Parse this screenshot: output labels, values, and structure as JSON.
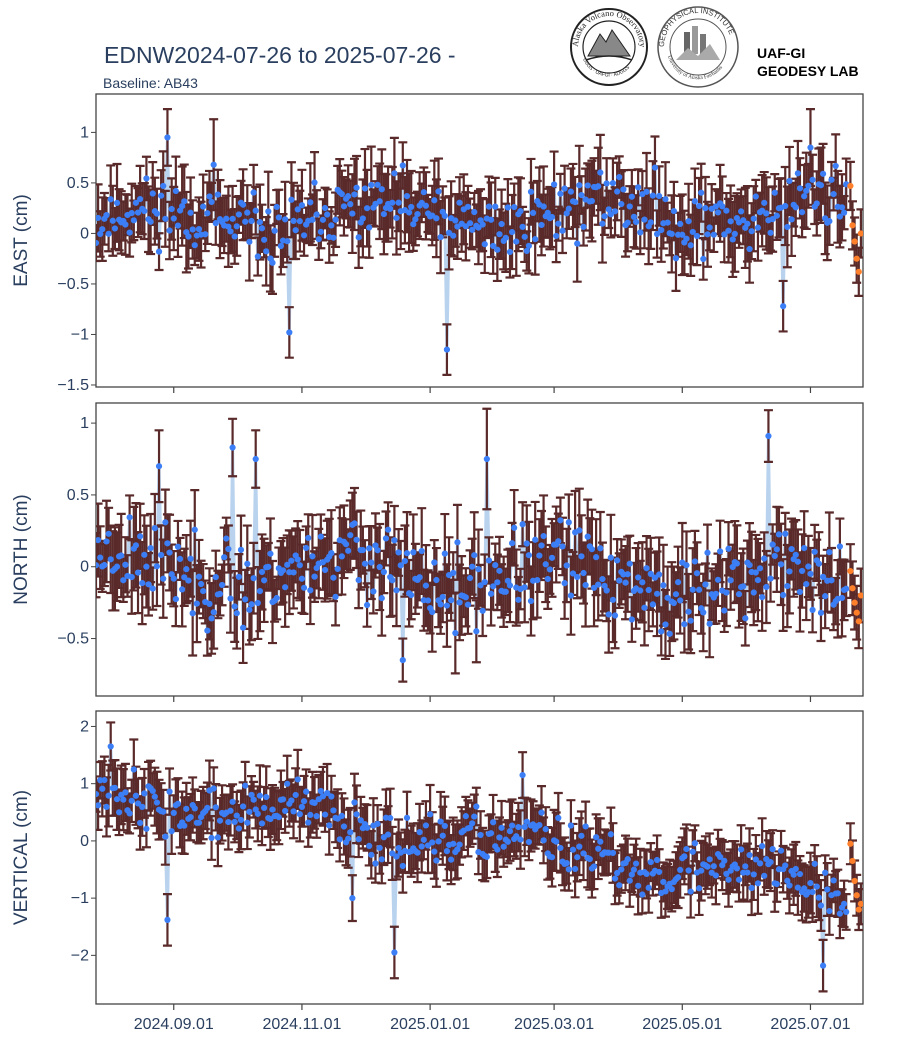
{
  "header": {
    "title": "EDNW2024-07-26 to 2025-07-26 -",
    "subtitle": "Baseline: AB43",
    "lab_line1": "UAF-GI",
    "lab_line2": "GEODESY LAB",
    "logo1_text": "Alaska Volcano Observatory",
    "logo1_subtext": "USGS · UAFGI · ADGGS",
    "logo2_text": "GEOPHYSICAL INSTITUTE",
    "logo2_subtext": "University of Alaska Fairbanks"
  },
  "colors": {
    "point": "#3b7ef5",
    "errorbar": "#5a2a2a",
    "connector": "#b9d3ef",
    "recent": "#ff7f2a",
    "frame": "#444444",
    "text": "#2a3f5f"
  },
  "chart_data": {
    "type": "scatter",
    "x_range": [
      "2024-07-26",
      "2025-07-26"
    ],
    "x_ticks": [
      {
        "date": "2024-09-01",
        "label": "2024.09.01"
      },
      {
        "date": "2024-11-01",
        "label": "2024.11.01"
      },
      {
        "date": "2025-01-01",
        "label": "2025.01.01"
      },
      {
        "date": "2025-03-01",
        "label": "2025.03.01"
      },
      {
        "date": "2025-05-01",
        "label": "2025.05.01"
      },
      {
        "date": "2025-07-01",
        "label": "2025.07.01"
      }
    ],
    "panels": [
      {
        "name": "east",
        "ylabel": "EAST (cm)",
        "ylim": [
          -1.52,
          1.38
        ],
        "y_ticks": [
          {
            "v": 1,
            "label": "1"
          },
          {
            "v": 0.5,
            "label": "0.5"
          },
          {
            "v": 0,
            "label": "0"
          },
          {
            "v": -0.5,
            "label": "−0.5"
          },
          {
            "v": -1,
            "label": "−1"
          },
          {
            "v": -1.5,
            "label": "−1.5"
          }
        ],
        "trend_start": 0.1,
        "trend_end": 0.25,
        "noise": 0.22,
        "err_base": 0.28,
        "err_spread": 0.12,
        "seed": 11,
        "outliers": [
          {
            "day": 34,
            "v": 0.95,
            "e": 0.28
          },
          {
            "day": 56,
            "v": 0.68,
            "e": 0.45
          },
          {
            "day": 92,
            "v": -0.98,
            "e": 0.25
          },
          {
            "day": 167,
            "v": -1.15,
            "e": 0.25
          },
          {
            "day": 340,
            "v": 0.85,
            "e": 0.38
          },
          {
            "day": 327,
            "v": -0.72,
            "e": 0.25
          }
        ],
        "recent": [
          0.47,
          0.08,
          -0.08,
          -0.25,
          -0.38,
          0.0
        ]
      },
      {
        "name": "north",
        "ylabel": "NORTH (cm)",
        "ylim": [
          -0.9,
          1.14
        ],
        "y_ticks": [
          {
            "v": 1,
            "label": "1"
          },
          {
            "v": 0.5,
            "label": "0.5"
          },
          {
            "v": 0,
            "label": "0"
          },
          {
            "v": -0.5,
            "label": "−0.5"
          }
        ],
        "trend_start": 0.0,
        "trend_end": -0.12,
        "noise": 0.2,
        "err_base": 0.22,
        "err_spread": 0.08,
        "seed": 23,
        "outliers": [
          {
            "day": 65,
            "v": 0.83,
            "e": 0.2
          },
          {
            "day": 76,
            "v": 0.75,
            "e": 0.2
          },
          {
            "day": 146,
            "v": -0.65,
            "e": 0.15
          },
          {
            "day": 186,
            "v": 0.75,
            "e": 0.35
          },
          {
            "day": 320,
            "v": 0.91,
            "e": 0.18
          },
          {
            "day": 30,
            "v": 0.7,
            "e": 0.25
          }
        ],
        "recent": [
          -0.03,
          -0.15,
          -0.25,
          -0.32,
          -0.38,
          -0.2
        ]
      },
      {
        "name": "vertical",
        "ylabel": "VERTICAL (cm)",
        "ylim": [
          -2.85,
          2.27
        ],
        "y_ticks": [
          {
            "v": 2,
            "label": "2"
          },
          {
            "v": 1,
            "label": "1"
          },
          {
            "v": 0,
            "label": "0"
          },
          {
            "v": -1,
            "label": "−1"
          },
          {
            "v": -2,
            "label": "−2"
          }
        ],
        "trend_start": 0.85,
        "trend_end": -0.85,
        "noise": 0.32,
        "err_base": 0.42,
        "err_spread": 0.12,
        "seed": 37,
        "outliers": [
          {
            "day": 7,
            "v": 1.65,
            "e": 0.42
          },
          {
            "day": 34,
            "v": -1.38,
            "e": 0.45
          },
          {
            "day": 122,
            "v": -1.0,
            "e": 0.4
          },
          {
            "day": 142,
            "v": -1.95,
            "e": 0.45
          },
          {
            "day": 203,
            "v": 1.15,
            "e": 0.4
          },
          {
            "day": 346,
            "v": -2.18,
            "e": 0.45
          }
        ],
        "recent": [
          -0.05,
          -0.35,
          -0.7,
          -0.95,
          -1.2,
          -1.1
        ]
      }
    ]
  }
}
